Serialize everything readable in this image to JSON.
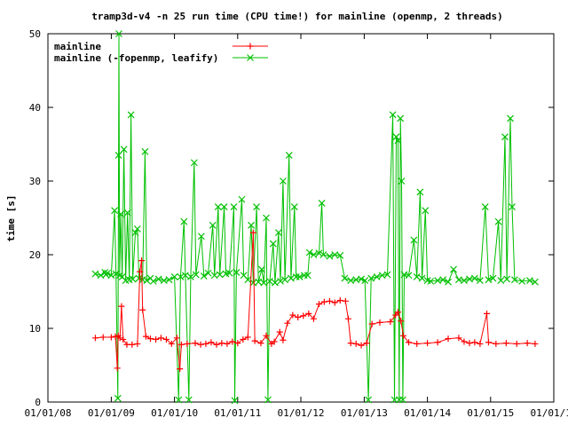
{
  "chart_data": {
    "type": "line",
    "title": "tramp3d-v4 -n 25 run time (CPU time!) for mainline (openmp, 2 threads)",
    "xlabel": "",
    "ylabel": "time [s]",
    "xlim": [
      "2008-01-01",
      "2016-01-01"
    ],
    "ylim": [
      0,
      50
    ],
    "x_ticks": [
      "01/01/08",
      "01/01/09",
      "01/01/10",
      "01/01/11",
      "01/01/12",
      "01/01/13",
      "01/01/14",
      "01/01/15",
      "01/01/16"
    ],
    "y_ticks": [
      0,
      10,
      20,
      30,
      40,
      50
    ],
    "grid": false,
    "legend_position": "top-left",
    "series": [
      {
        "name": "mainline",
        "color": "#ff0000",
        "marker": "plus",
        "points": [
          [
            "2008-10-01",
            8.7
          ],
          [
            "2008-11-15",
            8.8
          ],
          [
            "2009-01-01",
            8.8
          ],
          [
            "2009-01-25",
            8.9
          ],
          [
            "2009-02-05",
            4.6
          ],
          [
            "2009-02-10",
            9.0
          ],
          [
            "2009-02-20",
            8.7
          ],
          [
            "2009-03-01",
            13.0
          ],
          [
            "2009-03-10",
            8.5
          ],
          [
            "2009-04-01",
            7.8
          ],
          [
            "2009-05-01",
            7.8
          ],
          [
            "2009-06-01",
            7.9
          ],
          [
            "2009-06-15",
            17.7
          ],
          [
            "2009-06-25",
            19.2
          ],
          [
            "2009-07-01",
            12.5
          ],
          [
            "2009-07-20",
            8.9
          ],
          [
            "2009-08-15",
            8.6
          ],
          [
            "2009-09-15",
            8.5
          ],
          [
            "2009-10-15",
            8.7
          ],
          [
            "2009-11-15",
            8.5
          ],
          [
            "2009-12-15",
            7.9
          ],
          [
            "2010-01-15",
            8.7
          ],
          [
            "2010-02-01",
            4.5
          ],
          [
            "2010-02-10",
            7.8
          ],
          [
            "2010-03-15",
            7.9
          ],
          [
            "2010-05-01",
            8.0
          ],
          [
            "2010-06-01",
            7.8
          ],
          [
            "2010-07-01",
            7.9
          ],
          [
            "2010-08-01",
            8.1
          ],
          [
            "2010-09-01",
            7.8
          ],
          [
            "2010-10-01",
            8.0
          ],
          [
            "2010-11-01",
            7.9
          ],
          [
            "2010-12-01",
            8.2
          ],
          [
            "2011-01-01",
            8.0
          ],
          [
            "2011-02-01",
            8.5
          ],
          [
            "2011-03-01",
            8.8
          ],
          [
            "2011-04-01",
            23.0
          ],
          [
            "2011-04-10",
            8.3
          ],
          [
            "2011-05-15",
            8.0
          ],
          [
            "2011-06-15",
            9.0
          ],
          [
            "2011-07-15",
            7.9
          ],
          [
            "2011-08-01",
            8.2
          ],
          [
            "2011-09-01",
            9.5
          ],
          [
            "2011-09-20",
            8.4
          ],
          [
            "2011-10-15",
            10.7
          ],
          [
            "2011-11-15",
            11.8
          ],
          [
            "2011-12-15",
            11.5
          ],
          [
            "2012-01-15",
            11.7
          ],
          [
            "2012-02-15",
            12.0
          ],
          [
            "2012-03-15",
            11.3
          ],
          [
            "2012-04-15",
            13.3
          ],
          [
            "2012-05-15",
            13.6
          ],
          [
            "2012-06-15",
            13.7
          ],
          [
            "2012-07-15",
            13.5
          ],
          [
            "2012-08-15",
            13.8
          ],
          [
            "2012-09-15",
            13.7
          ],
          [
            "2012-10-01",
            11.3
          ],
          [
            "2012-10-15",
            8.0
          ],
          [
            "2012-11-15",
            7.9
          ],
          [
            "2012-12-15",
            7.7
          ],
          [
            "2013-01-15",
            8.0
          ],
          [
            "2013-02-15",
            10.6
          ],
          [
            "2013-04-01",
            10.8
          ],
          [
            "2013-06-01",
            10.9
          ],
          [
            "2013-07-01",
            11.8
          ],
          [
            "2013-07-15",
            12.2
          ],
          [
            "2013-08-01",
            11.0
          ],
          [
            "2013-08-15",
            9.0
          ],
          [
            "2013-09-15",
            8.1
          ],
          [
            "2013-11-01",
            7.9
          ],
          [
            "2014-01-01",
            8.0
          ],
          [
            "2014-03-01",
            8.1
          ],
          [
            "2014-05-01",
            8.6
          ],
          [
            "2014-07-01",
            8.7
          ],
          [
            "2014-08-01",
            8.2
          ],
          [
            "2014-09-01",
            8.0
          ],
          [
            "2014-10-01",
            8.1
          ],
          [
            "2014-11-01",
            7.9
          ],
          [
            "2014-12-10",
            12.0
          ],
          [
            "2014-12-20",
            8.1
          ],
          [
            "2015-02-01",
            7.9
          ],
          [
            "2015-04-01",
            8.0
          ],
          [
            "2015-06-01",
            7.9
          ],
          [
            "2015-08-01",
            8.0
          ],
          [
            "2015-09-15",
            7.9
          ]
        ]
      },
      {
        "name": "mainline (-fopenmp, leafify)",
        "color": "#00c000",
        "marker": "cross",
        "points": [
          [
            "2008-10-01",
            17.4
          ],
          [
            "2008-11-01",
            17.2
          ],
          [
            "2008-11-25",
            17.6
          ],
          [
            "2008-12-01",
            17.3
          ],
          [
            "2008-12-10",
            17.5
          ],
          [
            "2009-01-01",
            17.2
          ],
          [
            "2009-01-20",
            26.0
          ],
          [
            "2009-01-28",
            17.4
          ],
          [
            "2009-02-08",
            0.5
          ],
          [
            "2009-02-12",
            33.5
          ],
          [
            "2009-02-14",
            50.0
          ],
          [
            "2009-02-18",
            17.2
          ],
          [
            "2009-02-25",
            25.5
          ],
          [
            "2009-03-05",
            17.0
          ],
          [
            "2009-03-15",
            34.3
          ],
          [
            "2009-03-25",
            16.5
          ],
          [
            "2009-04-05",
            25.7
          ],
          [
            "2009-04-15",
            16.6
          ],
          [
            "2009-04-25",
            39.0
          ],
          [
            "2009-05-05",
            16.7
          ],
          [
            "2009-05-20",
            23.0
          ],
          [
            "2009-06-01",
            23.5
          ],
          [
            "2009-06-10",
            16.8
          ],
          [
            "2009-07-01",
            16.6
          ],
          [
            "2009-07-15",
            34.0
          ],
          [
            "2009-07-25",
            16.5
          ],
          [
            "2009-08-15",
            16.8
          ],
          [
            "2009-09-01",
            16.4
          ],
          [
            "2009-10-01",
            16.7
          ],
          [
            "2009-11-01",
            16.5
          ],
          [
            "2009-12-01",
            16.6
          ],
          [
            "2010-01-01",
            17.0
          ],
          [
            "2010-01-25",
            0.3
          ],
          [
            "2010-02-05",
            17.0
          ],
          [
            "2010-02-25",
            24.5
          ],
          [
            "2010-03-05",
            17.2
          ],
          [
            "2010-03-25",
            0.3
          ],
          [
            "2010-04-05",
            17.0
          ],
          [
            "2010-04-25",
            32.5
          ],
          [
            "2010-05-05",
            17.3
          ],
          [
            "2010-06-05",
            22.5
          ],
          [
            "2010-06-20",
            17.1
          ],
          [
            "2010-07-15",
            17.5
          ],
          [
            "2010-08-10",
            24.0
          ],
          [
            "2010-08-20",
            17.2
          ],
          [
            "2010-09-10",
            26.5
          ],
          [
            "2010-09-20",
            17.3
          ],
          [
            "2010-10-15",
            26.5
          ],
          [
            "2010-10-25",
            17.4
          ],
          [
            "2010-11-15",
            17.5
          ],
          [
            "2010-12-10",
            26.5
          ],
          [
            "2010-12-15",
            0.2
          ],
          [
            "2010-12-25",
            17.6
          ],
          [
            "2011-01-25",
            27.5
          ],
          [
            "2011-02-05",
            17.2
          ],
          [
            "2011-03-01",
            16.6
          ],
          [
            "2011-03-20",
            24.0
          ],
          [
            "2011-04-01",
            16.2
          ],
          [
            "2011-04-20",
            26.5
          ],
          [
            "2011-05-01",
            16.3
          ],
          [
            "2011-05-20",
            18.0
          ],
          [
            "2011-06-01",
            16.2
          ],
          [
            "2011-06-15",
            25.0
          ],
          [
            "2011-06-25",
            0.3
          ],
          [
            "2011-07-05",
            16.4
          ],
          [
            "2011-07-25",
            21.5
          ],
          [
            "2011-08-05",
            16.2
          ],
          [
            "2011-08-25",
            23.0
          ],
          [
            "2011-09-05",
            16.4
          ],
          [
            "2011-09-20",
            30.0
          ],
          [
            "2011-10-01",
            16.6
          ],
          [
            "2011-10-25",
            33.5
          ],
          [
            "2011-11-05",
            16.8
          ],
          [
            "2011-11-25",
            26.5
          ],
          [
            "2011-12-05",
            17.0
          ],
          [
            "2011-12-25",
            17.0
          ],
          [
            "2012-01-20",
            17.2
          ],
          [
            "2012-02-10",
            17.2
          ],
          [
            "2012-02-20",
            20.3
          ],
          [
            "2012-03-15",
            20.0
          ],
          [
            "2012-04-15",
            20.2
          ],
          [
            "2012-05-01",
            27.0
          ],
          [
            "2012-05-10",
            20.0
          ],
          [
            "2012-06-15",
            19.8
          ],
          [
            "2012-07-15",
            20.0
          ],
          [
            "2012-08-15",
            19.9
          ],
          [
            "2012-09-10",
            16.8
          ],
          [
            "2012-10-15",
            16.5
          ],
          [
            "2012-11-15",
            16.6
          ],
          [
            "2012-12-15",
            16.7
          ],
          [
            "2013-01-05",
            16.5
          ],
          [
            "2013-01-25",
            0.3
          ],
          [
            "2013-02-10",
            16.8
          ],
          [
            "2013-03-15",
            17.0
          ],
          [
            "2013-04-15",
            17.2
          ],
          [
            "2013-05-15",
            17.3
          ],
          [
            "2013-06-15",
            39.0
          ],
          [
            "2013-06-25",
            0.3
          ],
          [
            "2013-07-05",
            36.0
          ],
          [
            "2013-07-15",
            35.5
          ],
          [
            "2013-07-22",
            0.3
          ],
          [
            "2013-07-29",
            38.5
          ],
          [
            "2013-08-05",
            30.0
          ],
          [
            "2013-08-12",
            0.3
          ],
          [
            "2013-08-20",
            17.3
          ],
          [
            "2013-09-15",
            17.2
          ],
          [
            "2013-10-15",
            22.0
          ],
          [
            "2013-11-01",
            17.0
          ],
          [
            "2013-11-20",
            28.5
          ],
          [
            "2013-12-01",
            16.8
          ],
          [
            "2013-12-20",
            26.0
          ],
          [
            "2014-01-01",
            16.5
          ],
          [
            "2014-01-20",
            16.4
          ],
          [
            "2014-03-01",
            16.5
          ],
          [
            "2014-04-01",
            16.6
          ],
          [
            "2014-05-01",
            16.3
          ],
          [
            "2014-06-01",
            18.0
          ],
          [
            "2014-07-01",
            16.6
          ],
          [
            "2014-08-01",
            16.5
          ],
          [
            "2014-09-01",
            16.7
          ],
          [
            "2014-10-01",
            16.8
          ],
          [
            "2014-11-01",
            16.5
          ],
          [
            "2014-12-01",
            26.5
          ],
          [
            "2014-12-20",
            16.6
          ],
          [
            "2015-01-15",
            16.8
          ],
          [
            "2015-02-15",
            24.5
          ],
          [
            "2015-03-01",
            16.5
          ],
          [
            "2015-03-25",
            36.0
          ],
          [
            "2015-04-05",
            16.7
          ],
          [
            "2015-04-25",
            38.5
          ],
          [
            "2015-05-05",
            26.5
          ],
          [
            "2015-05-20",
            16.6
          ],
          [
            "2015-07-01",
            16.4
          ],
          [
            "2015-08-15",
            16.5
          ],
          [
            "2015-09-15",
            16.3
          ]
        ]
      }
    ]
  }
}
